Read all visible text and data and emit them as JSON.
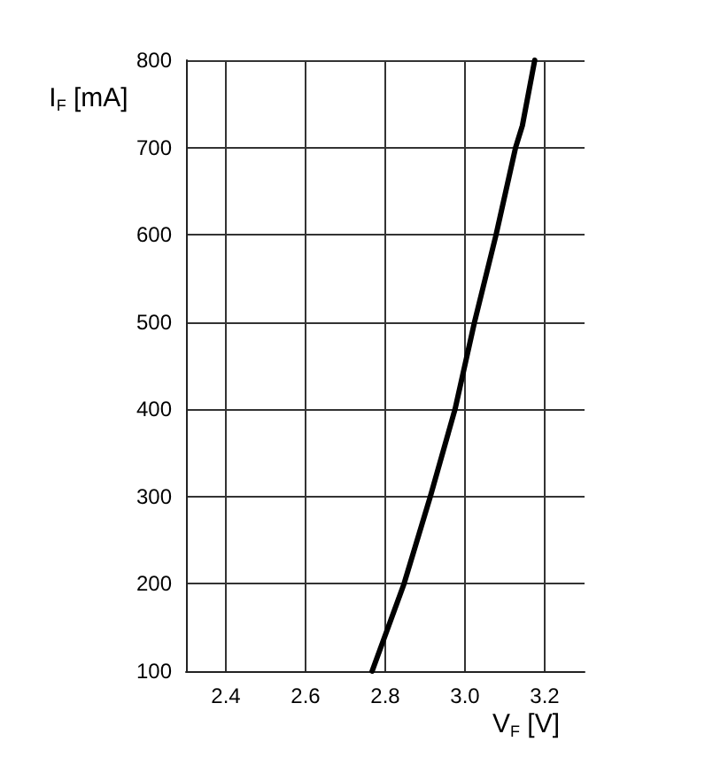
{
  "chart_data": {
    "type": "line",
    "xlabel": "V$_{F}$ [V]",
    "ylabel": "I$_{F}$ [mA]",
    "series": [
      {
        "color": "#000000",
        "x": [
          2.767,
          2.847,
          2.913,
          2.975,
          3.024,
          3.078,
          3.127,
          3.144,
          3.175
        ],
        "values": [
          100,
          200,
          300,
          400,
          500,
          600,
          700,
          725,
          800
        ]
      }
    ],
    "xlim": [
      2.3,
      3.3
    ],
    "xticks": [
      2.4,
      2.6,
      2.8,
      {
        "value": 3.0,
        "label": "3.0"
      },
      3.2
    ],
    "ylim": [
      100,
      800
    ],
    "yticks": [
      100,
      200,
      300,
      400,
      500,
      600,
      700,
      800
    ],
    "grid": true,
    "marker": "none",
    "line_style": "solid"
  }
}
